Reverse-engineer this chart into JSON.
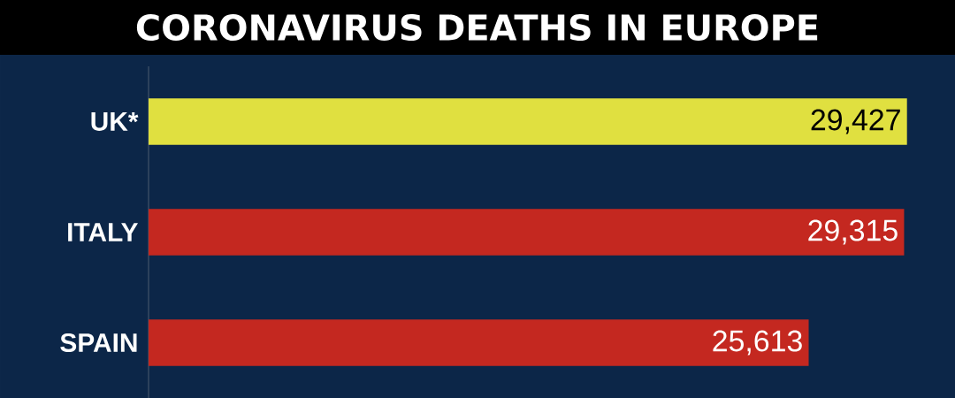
{
  "chart_data": {
    "type": "bar",
    "orientation": "horizontal",
    "title": "CORONAVIRUS DEATHS IN EUROPE",
    "categories": [
      "UK*",
      "ITALY",
      "SPAIN"
    ],
    "values": [
      29427,
      29315,
      25613
    ],
    "colors": [
      "#e0e040",
      "#c42820",
      "#c42820"
    ],
    "value_labels": [
      "29,427",
      "29,315",
      "25,613"
    ]
  }
}
